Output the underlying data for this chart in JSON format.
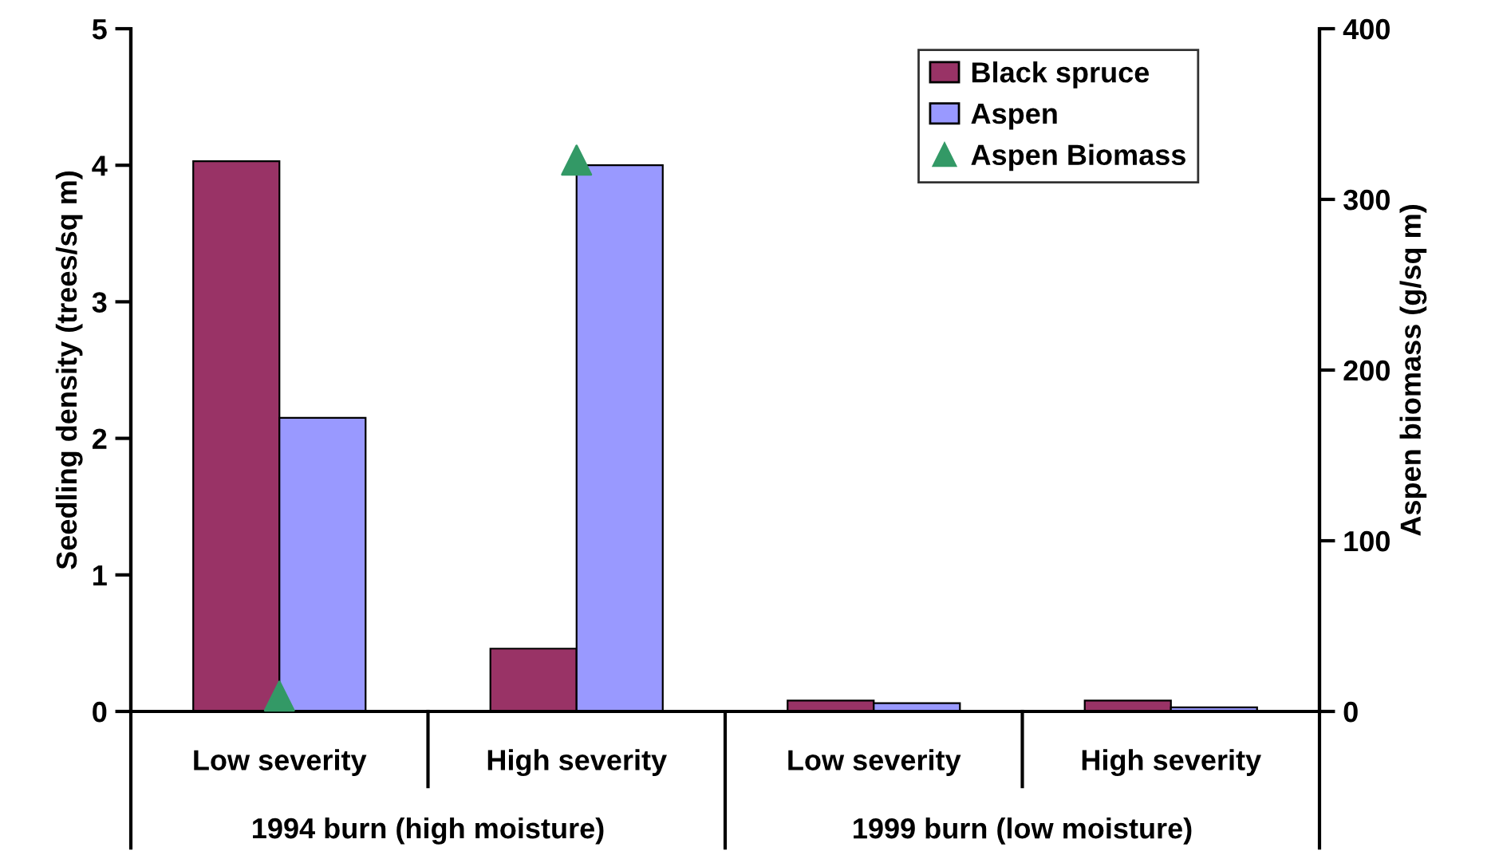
{
  "chart_data": {
    "type": "bar",
    "ylabel": "Seedling density (trees/sq m)",
    "y2label": "Aspen biomass (g/sq m)",
    "categories": [
      "Low severity",
      "High severity",
      "Low severity",
      "High severity"
    ],
    "series": [
      {
        "name": "Black spruce",
        "color": "#993366",
        "values": [
          4.03,
          0.46,
          0.08,
          0.08
        ]
      },
      {
        "name": "Aspen",
        "color": "#9999ff",
        "values": [
          2.15,
          4.0,
          0.06,
          0.03
        ]
      },
      {
        "name": "Aspen Biomass",
        "type": "scatter",
        "axis": "y2",
        "color": "#339966",
        "marker": "triangle",
        "values": [
          9,
          323,
          null,
          null
        ]
      }
    ],
    "annotations": [
      "1994 burn (high moisture)",
      "1999 burn (low moisture)"
    ],
    "ylim": [
      0,
      5
    ],
    "yticks": [
      0,
      1,
      2,
      3,
      4,
      5
    ],
    "y2lim": [
      0,
      400
    ],
    "y2ticks": [
      0,
      100,
      200,
      300,
      400
    ],
    "grid": false,
    "legend": "top right"
  }
}
